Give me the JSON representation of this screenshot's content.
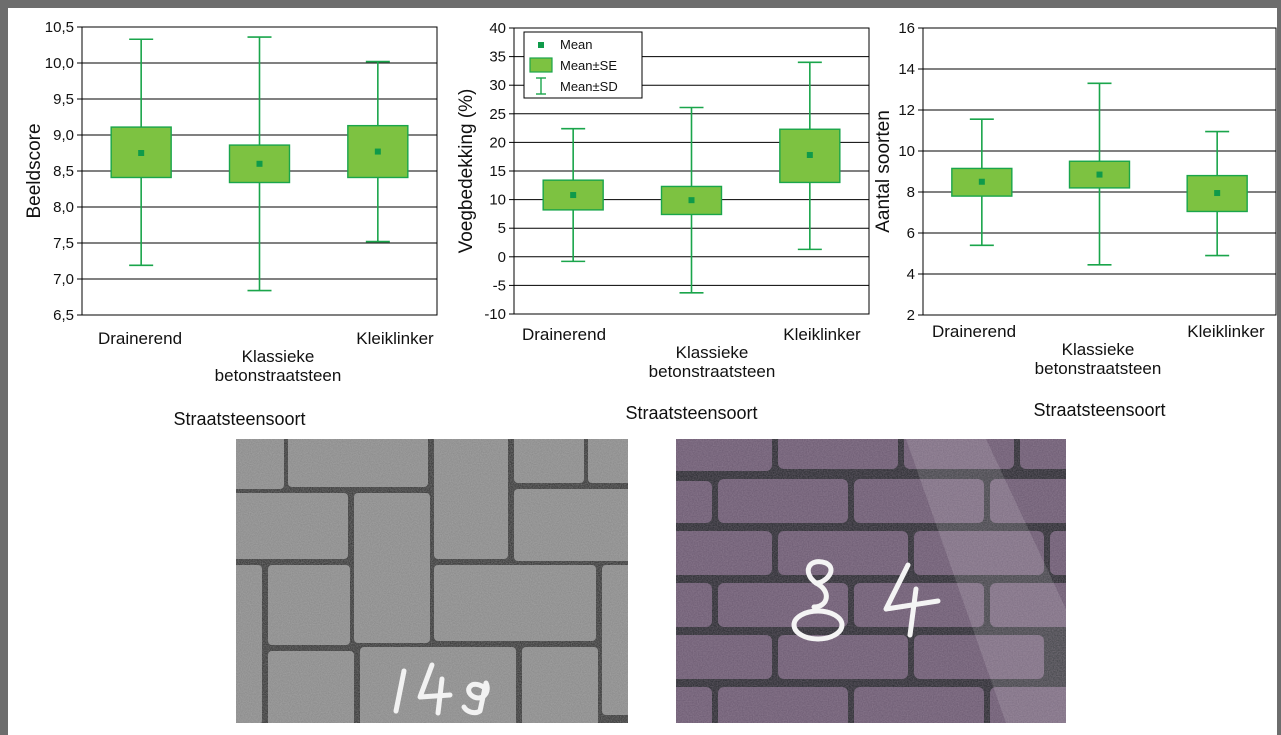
{
  "colors": {
    "box_fill": "#7dc241",
    "box_stroke": "#1aa54b",
    "whisker": "#1aa54b",
    "mean_marker": "#0f9a4a",
    "grid": "#000000"
  },
  "chart_data": [
    {
      "type": "box",
      "ylabel": "Beeldscore",
      "xlabel": "Straatsteensoort",
      "ylim": [
        6.5,
        10.5
      ],
      "yticks": [
        "6,5",
        "7,0",
        "7,5",
        "8,0",
        "8,5",
        "9,0",
        "9,5",
        "10,0",
        "10,5"
      ],
      "ytick_values": [
        6.5,
        7.0,
        7.5,
        8.0,
        8.5,
        9.0,
        9.5,
        10.0,
        10.5
      ],
      "categories": [
        "Drainerend",
        "Klassieke\nbetonstraatsteen",
        "Kleiklinker"
      ],
      "mean": [
        8.75,
        8.6,
        8.77
      ],
      "se_low": [
        8.41,
        8.34,
        8.41
      ],
      "se_high": [
        9.11,
        8.86,
        9.13
      ],
      "sd_low": [
        7.19,
        6.84,
        7.52
      ],
      "sd_high": [
        10.33,
        10.36,
        10.02
      ],
      "grid": true
    },
    {
      "type": "box",
      "ylabel": "Voegbedekking (%)",
      "xlabel": "Straatsteensoort",
      "ylim": [
        -10,
        40
      ],
      "yticks": [
        "-10",
        "-5",
        "0",
        "5",
        "10",
        "15",
        "20",
        "25",
        "30",
        "35",
        "40"
      ],
      "ytick_values": [
        -10,
        -5,
        0,
        5,
        10,
        15,
        20,
        25,
        30,
        35,
        40
      ],
      "categories": [
        "Drainerend",
        "Klassieke\nbetonstraatsteen",
        "Kleiklinker"
      ],
      "mean": [
        10.8,
        9.9,
        17.8
      ],
      "se_low": [
        8.2,
        7.4,
        13.0
      ],
      "se_high": [
        13.4,
        12.3,
        22.3
      ],
      "sd_low": [
        -0.8,
        -6.3,
        1.3
      ],
      "sd_high": [
        22.4,
        26.1,
        34.0
      ],
      "grid": true,
      "legend": {
        "placement": "top-left",
        "entries": [
          "Mean",
          "Mean±SE",
          "Mean±SD"
        ]
      }
    },
    {
      "type": "box",
      "ylabel": "Aantal soorten",
      "xlabel": "Straatsteensoort",
      "ylim": [
        2,
        16
      ],
      "yticks": [
        "2",
        "4",
        "6",
        "8",
        "10",
        "12",
        "14",
        "16"
      ],
      "ytick_values": [
        2,
        4,
        6,
        8,
        10,
        12,
        14,
        16
      ],
      "categories": [
        "Drainerend",
        "Klassieke\nbetonstraatsteen",
        "Kleiklinker"
      ],
      "mean": [
        8.5,
        8.85,
        7.95
      ],
      "se_low": [
        7.8,
        8.2,
        7.05
      ],
      "se_high": [
        9.15,
        9.5,
        8.8
      ],
      "sd_low": [
        5.4,
        4.45,
        4.9
      ],
      "sd_high": [
        11.55,
        13.3,
        10.95
      ],
      "grid": true
    }
  ],
  "photos": [
    {
      "name": "concrete-pavers-photo",
      "label": "149"
    },
    {
      "name": "clay-brick-pavers-photo",
      "label": "84"
    }
  ]
}
